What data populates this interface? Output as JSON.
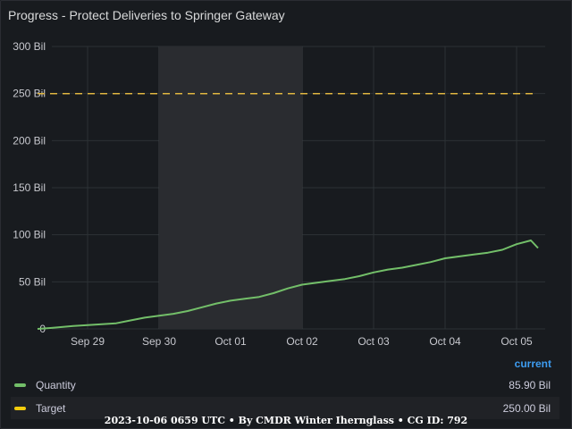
{
  "panel": {
    "title": "Progress - Protect Deliveries to Springer Gateway"
  },
  "legend": {
    "column_header": "current",
    "items": [
      {
        "name": "Quantity",
        "value": "85.90 Bil",
        "color": "#73bf69"
      },
      {
        "name": "Target",
        "value": "250.00 Bil",
        "color": "#f2cc0c"
      }
    ]
  },
  "footer": {
    "text": "2023-10-06 0659 UTC • By CMDR Winter Iherngla ss • CG ID: 792"
  },
  "colors": {
    "accent": "#3d9cf0",
    "background": "#181b1f",
    "grid": "#2c3235",
    "highlight_region": "#2a2c30"
  },
  "chart_data": {
    "type": "line",
    "y_ticks": [
      "300 Bil",
      "250 Bil",
      "200 Bil",
      "150 Bil",
      "100 Bil",
      "50 Bil",
      "0"
    ],
    "x_ticks": [
      "Sep 29",
      "Sep 30",
      "Oct 01",
      "Oct 02",
      "Oct 03",
      "Oct 04",
      "Oct 05"
    ],
    "ylim": [
      0,
      300
    ],
    "y_unit": "Bil",
    "xlim": [
      0.3,
      7.55
    ],
    "x_tick_positions": [
      1,
      2,
      3,
      4,
      5,
      6,
      7
    ],
    "highlight_range": [
      2,
      4
    ],
    "grid": true,
    "legend_position": "bottom",
    "series": [
      {
        "name": "Quantity",
        "color": "#73bf69",
        "style": "solid",
        "x": [
          0.3,
          0.5,
          0.8,
          1.0,
          1.2,
          1.4,
          1.6,
          1.8,
          2.0,
          2.2,
          2.4,
          2.6,
          2.8,
          3.0,
          3.2,
          3.4,
          3.6,
          3.8,
          4.0,
          4.2,
          4.4,
          4.6,
          4.8,
          5.0,
          5.2,
          5.4,
          5.6,
          5.8,
          6.0,
          6.2,
          6.4,
          6.6,
          6.8,
          7.0,
          7.2,
          7.3
        ],
        "y": [
          0,
          1,
          3,
          4,
          5,
          6,
          9,
          12,
          14,
          16,
          19,
          23,
          27,
          30,
          32,
          34,
          38,
          43,
          47,
          49,
          51,
          53,
          56,
          60,
          63,
          65,
          68,
          71,
          75,
          77,
          79,
          81,
          84,
          90,
          94,
          85.9
        ]
      },
      {
        "name": "Target",
        "color": "#f2cc0c",
        "style": "dashed",
        "x": [
          0.3,
          7.3
        ],
        "y": [
          250,
          250
        ]
      }
    ]
  }
}
